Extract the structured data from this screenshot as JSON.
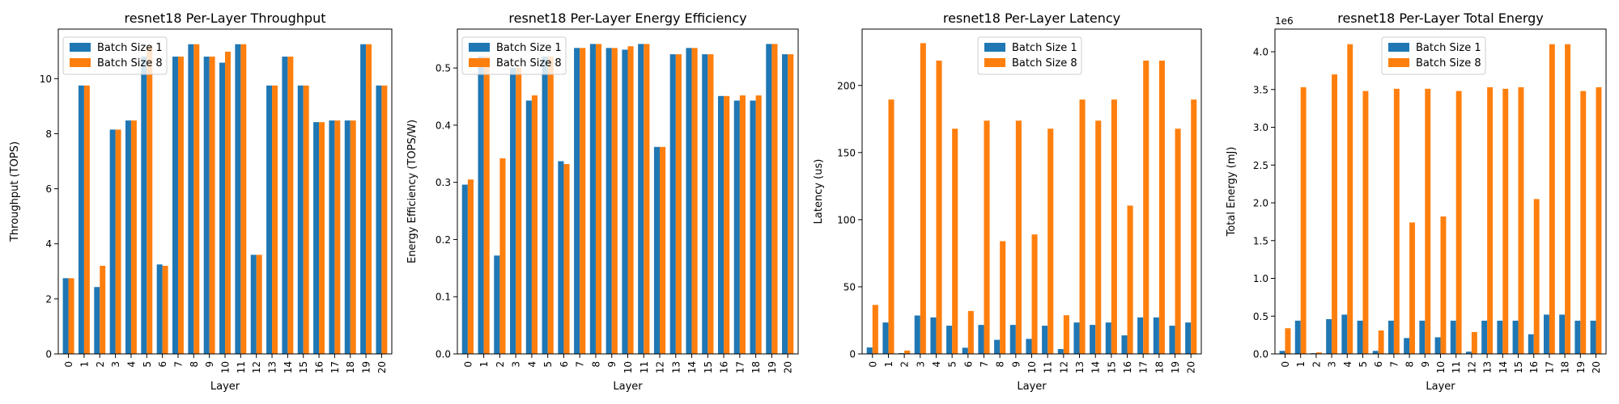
{
  "chart_data": [
    {
      "type": "bar",
      "title": "resnet18 Per-Layer Throughput",
      "xlabel": "Layer",
      "ylabel": "Throughput (TOPS)",
      "ylim": [
        0,
        11.8
      ],
      "yticks": [
        0,
        2,
        4,
        6,
        8,
        10
      ],
      "ytick_labels": [
        "0",
        "2",
        "4",
        "6",
        "8",
        "10"
      ],
      "offset_label": "",
      "legend": "upper-left",
      "categories": [
        "0",
        "1",
        "2",
        "3",
        "4",
        "5",
        "6",
        "7",
        "8",
        "9",
        "10",
        "11",
        "12",
        "13",
        "14",
        "15",
        "16",
        "17",
        "18",
        "19",
        "20"
      ],
      "series": [
        {
          "name": "Batch Size 1",
          "color": "#1f77b4",
          "values": [
            2.75,
            9.75,
            2.43,
            8.15,
            8.48,
            10.8,
            3.25,
            10.8,
            11.25,
            10.8,
            10.58,
            11.25,
            3.6,
            9.75,
            10.8,
            9.75,
            8.42,
            8.48,
            8.48,
            11.25,
            9.75
          ]
        },
        {
          "name": "Batch Size 8",
          "color": "#ff7f0e",
          "values": [
            2.75,
            9.75,
            3.2,
            8.15,
            8.48,
            11.2,
            3.2,
            10.8,
            11.25,
            10.8,
            10.98,
            11.25,
            3.6,
            9.75,
            10.8,
            9.75,
            8.42,
            8.48,
            8.48,
            11.25,
            9.75
          ]
        }
      ]
    },
    {
      "type": "bar",
      "title": "resnet18 Per-Layer Energy Efficiency",
      "xlabel": "Layer",
      "ylabel": "Energy Efficiency (TOPS/W)",
      "ylim": [
        0,
        0.568
      ],
      "yticks": [
        0,
        0.1,
        0.2,
        0.3,
        0.4,
        0.5
      ],
      "ytick_labels": [
        "0.0",
        "0.1",
        "0.2",
        "0.3",
        "0.4",
        "0.5"
      ],
      "offset_label": "",
      "legend": "upper-left",
      "categories": [
        "0",
        "1",
        "2",
        "3",
        "4",
        "5",
        "6",
        "7",
        "8",
        "9",
        "10",
        "11",
        "12",
        "13",
        "14",
        "15",
        "16",
        "17",
        "18",
        "19",
        "20"
      ],
      "series": [
        {
          "name": "Batch Size 1",
          "color": "#1f77b4",
          "values": [
            0.296,
            0.52,
            0.172,
            0.5,
            0.443,
            0.52,
            0.337,
            0.535,
            0.542,
            0.535,
            0.532,
            0.542,
            0.362,
            0.524,
            0.535,
            0.524,
            0.451,
            0.443,
            0.443,
            0.542,
            0.524
          ]
        },
        {
          "name": "Batch Size 8",
          "color": "#ff7f0e",
          "values": [
            0.305,
            0.52,
            0.342,
            0.5,
            0.452,
            0.52,
            0.332,
            0.535,
            0.542,
            0.535,
            0.538,
            0.542,
            0.362,
            0.524,
            0.535,
            0.524,
            0.451,
            0.452,
            0.452,
            0.542,
            0.524
          ]
        }
      ]
    },
    {
      "type": "bar",
      "title": "resnet18 Per-Layer Latency",
      "xlabel": "Layer",
      "ylabel": "Latency (us)",
      "ylim": [
        0,
        242
      ],
      "yticks": [
        0,
        50,
        100,
        150,
        200
      ],
      "ytick_labels": [
        "0",
        "50",
        "100",
        "150",
        "200"
      ],
      "offset_label": "",
      "legend": "upper-center",
      "categories": [
        "0",
        "1",
        "2",
        "3",
        "4",
        "5",
        "6",
        "7",
        "8",
        "9",
        "10",
        "11",
        "12",
        "13",
        "14",
        "15",
        "16",
        "17",
        "18",
        "19",
        "20"
      ],
      "series": [
        {
          "name": "Batch Size 1",
          "color": "#1f77b4",
          "values": [
            4.8,
            23.4,
            0.6,
            28.6,
            27.2,
            21.0,
            4.6,
            21.6,
            10.5,
            21.6,
            11.2,
            21.0,
            3.6,
            23.4,
            21.6,
            23.4,
            13.8,
            27.2,
            27.2,
            21.0,
            23.4
          ]
        },
        {
          "name": "Batch Size 8",
          "color": "#ff7f0e",
          "values": [
            36.5,
            189.5,
            2.5,
            231.5,
            218.5,
            167.8,
            32.0,
            173.8,
            84.0,
            173.8,
            89.0,
            167.8,
            28.8,
            189.5,
            173.8,
            189.5,
            110.5,
            218.5,
            218.5,
            167.8,
            189.5
          ]
        }
      ]
    },
    {
      "type": "bar",
      "title": "resnet18 Per-Layer Total Energy",
      "xlabel": "Layer",
      "ylabel": "Total Energy (mJ)",
      "ylim": [
        0,
        4.3
      ],
      "yticks": [
        0,
        0.5,
        1.0,
        1.5,
        2.0,
        2.5,
        3.0,
        3.5,
        4.0
      ],
      "ytick_labels": [
        "0.0",
        "0.5",
        "1.0",
        "1.5",
        "2.0",
        "2.5",
        "3.0",
        "3.5",
        "4.0"
      ],
      "offset_label": "1e6",
      "legend": "upper-center",
      "categories": [
        "0",
        "1",
        "2",
        "3",
        "4",
        "5",
        "6",
        "7",
        "8",
        "9",
        "10",
        "11",
        "12",
        "13",
        "14",
        "15",
        "16",
        "17",
        "18",
        "19",
        "20"
      ],
      "series": [
        {
          "name": "Batch Size 1",
          "color": "#1f77b4",
          "values": [
            0.04,
            0.44,
            0.01,
            0.46,
            0.52,
            0.44,
            0.04,
            0.44,
            0.21,
            0.44,
            0.22,
            0.44,
            0.03,
            0.44,
            0.44,
            0.44,
            0.26,
            0.52,
            0.52,
            0.44,
            0.44
          ]
        },
        {
          "name": "Batch Size 8",
          "color": "#ff7f0e",
          "values": [
            0.34,
            3.53,
            0.02,
            3.7,
            4.1,
            3.48,
            0.31,
            3.51,
            1.74,
            3.51,
            1.82,
            3.48,
            0.29,
            3.53,
            3.51,
            3.53,
            2.05,
            4.1,
            4.1,
            3.48,
            3.53
          ]
        }
      ]
    }
  ]
}
